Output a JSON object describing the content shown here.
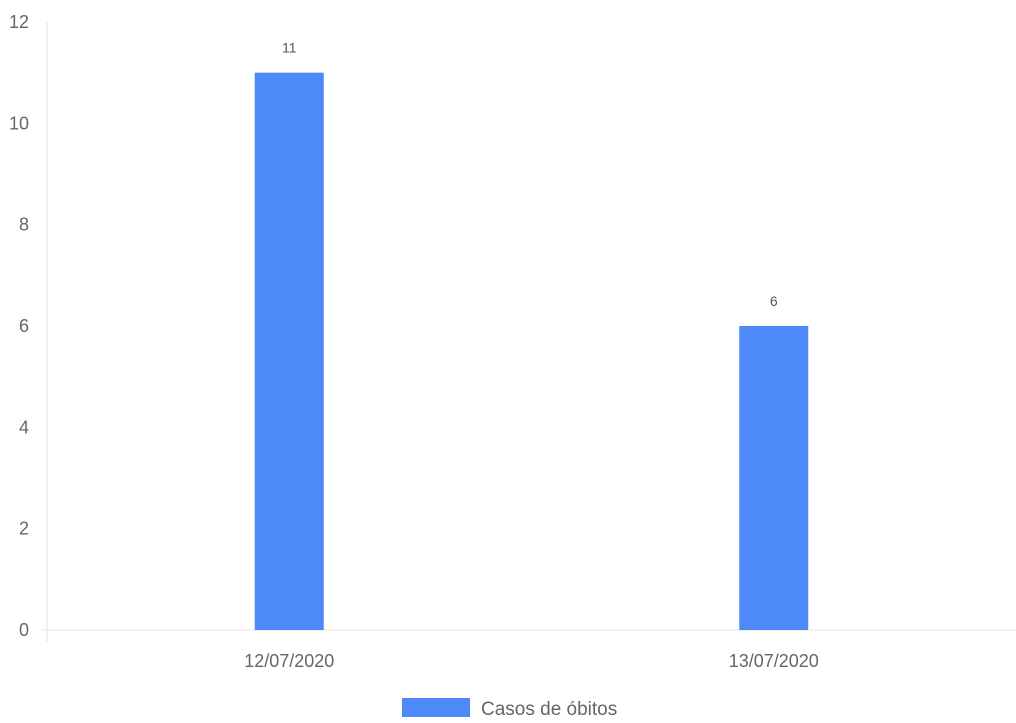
{
  "chart_data": {
    "type": "bar",
    "title": "",
    "xlabel": "",
    "ylabel": "",
    "categories": [
      "12/07/2020",
      "13/07/2020"
    ],
    "series": [
      {
        "name": "Casos de óbitos",
        "values": [
          11,
          6
        ],
        "color": "#4d89f9"
      }
    ],
    "ylim": [
      0,
      12
    ],
    "yticks": [
      "0",
      "2",
      "4",
      "6",
      "8",
      "10",
      "12"
    ],
    "data_labels": [
      "11",
      "6"
    ],
    "grid": false,
    "legend_position": "bottom"
  }
}
